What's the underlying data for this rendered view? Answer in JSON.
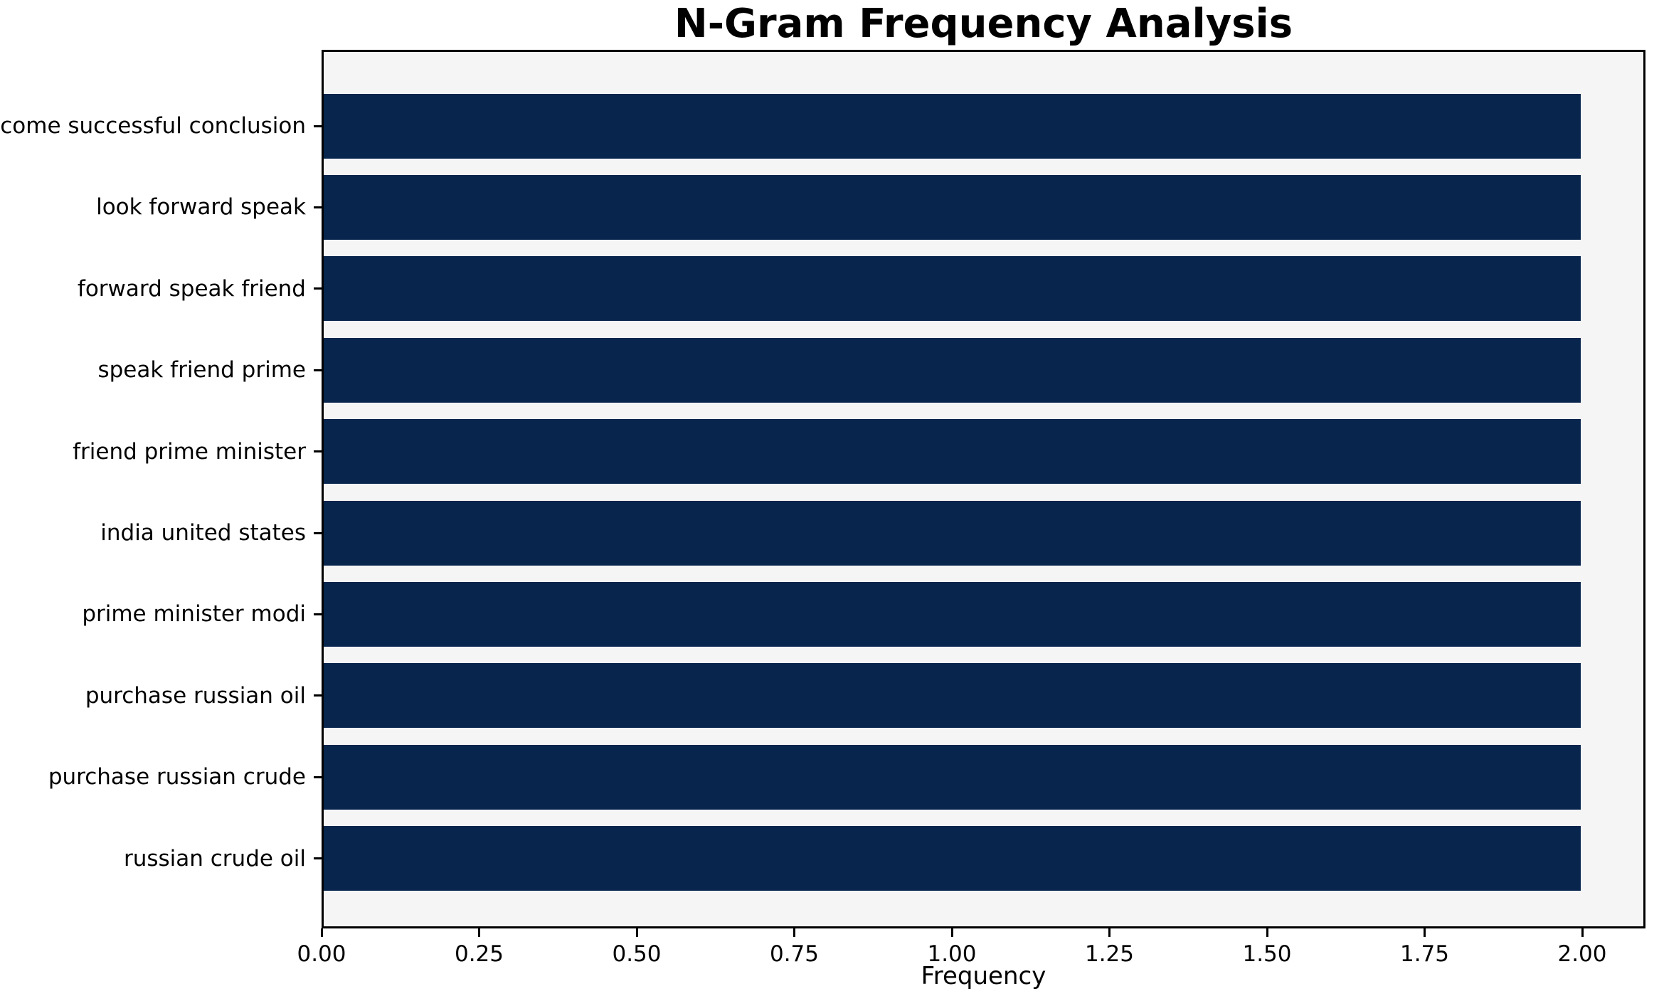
{
  "chart_data": {
    "type": "bar",
    "orientation": "horizontal",
    "title": "N-Gram Frequency Analysis",
    "xlabel": "Frequency",
    "ylabel": "",
    "categories": [
      "come successful conclusion",
      "look forward speak",
      "forward speak friend",
      "speak friend prime",
      "friend prime minister",
      "india united states",
      "prime minister modi",
      "purchase russian oil",
      "purchase russian crude",
      "russian crude oil"
    ],
    "values": [
      2,
      2,
      2,
      2,
      2,
      2,
      2,
      2,
      2,
      2
    ],
    "xlim": [
      0,
      2.1
    ],
    "x_ticks": [
      "0.00",
      "0.25",
      "0.50",
      "0.75",
      "1.00",
      "1.25",
      "1.50",
      "1.75",
      "2.00"
    ],
    "x_tick_values": [
      0,
      0.25,
      0.5,
      0.75,
      1.0,
      1.25,
      1.5,
      1.75,
      2.0
    ],
    "grid": false,
    "legend": null,
    "colors": {
      "bar": "#08254d",
      "plot_background": "#f5f5f6",
      "figure_background": "#ffffff",
      "axis": "#000000",
      "text": "#000000"
    }
  }
}
